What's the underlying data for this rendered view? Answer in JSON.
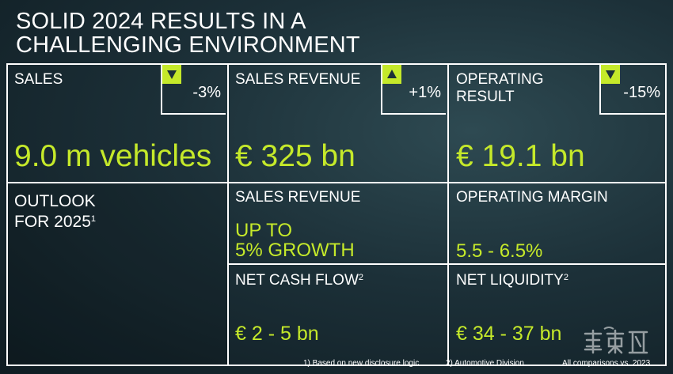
{
  "title": {
    "line1": "SOLID 2024 RESULTS IN A",
    "line2": "CHALLENGING ENVIRONMENT"
  },
  "kpis": [
    {
      "label": "SALES",
      "value": "9.0 m vehicles",
      "delta": "-3%",
      "direction": "down"
    },
    {
      "label": "SALES REVENUE",
      "value": "€ 325 bn",
      "delta": "+1%",
      "direction": "up"
    },
    {
      "label_line1": "OPERATING",
      "label_line2": "RESULT",
      "value": "€ 19.1 bn",
      "delta": "-15%",
      "direction": "down"
    }
  ],
  "outlook": {
    "line1": "OUTLOOK",
    "line2": "FOR 2025",
    "footnote_ref": "1",
    "sales_revenue": {
      "label": "SALES REVENUE",
      "value_line1": "UP TO",
      "value_line2": "5% GROWTH"
    },
    "operating_margin": {
      "label": "OPERATING MARGIN",
      "value": "5.5 - 6.5%"
    },
    "net_cash_flow": {
      "label": "NET CASH FLOW",
      "footnote_ref": "2",
      "value": "€ 2 - 5 bn"
    },
    "net_liquidity": {
      "label": "NET LIQUIDITY",
      "footnote_ref": "2",
      "value": "€ 34 - 37 bn"
    }
  },
  "footnotes": {
    "note1": "1) Based on new disclosure logic",
    "note2": "2) Automotive Division",
    "note3": "All comparisons vs. 2023"
  },
  "colors": {
    "accent": "#c5e92a",
    "text": "#ffffff",
    "background": "#1c3038"
  },
  "icons": {
    "down": "triangle-down-icon",
    "up": "triangle-up-icon"
  }
}
